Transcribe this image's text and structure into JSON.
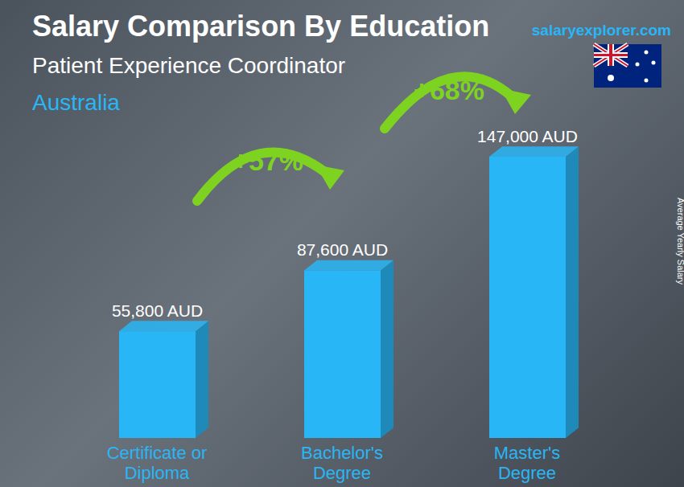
{
  "chart_data": {
    "type": "bar",
    "title": "Salary Comparison By Education",
    "subtitle": "Patient Experience Coordinator",
    "location": "Australia",
    "source": "salaryexplorer.com",
    "y_label": "Average Yearly Salary",
    "categories": [
      "Certificate or Diploma",
      "Bachelor's Degree",
      "Master's Degree"
    ],
    "values": [
      55800,
      87600,
      147000
    ],
    "value_labels": [
      "55,800 AUD",
      "87,600 AUD",
      "147,000 AUD"
    ],
    "data_labels": true,
    "color": "#29b6f6",
    "tick_labels": "x",
    "grid": false,
    "annotations": [
      "+57%",
      "+68%"
    ]
  }
}
